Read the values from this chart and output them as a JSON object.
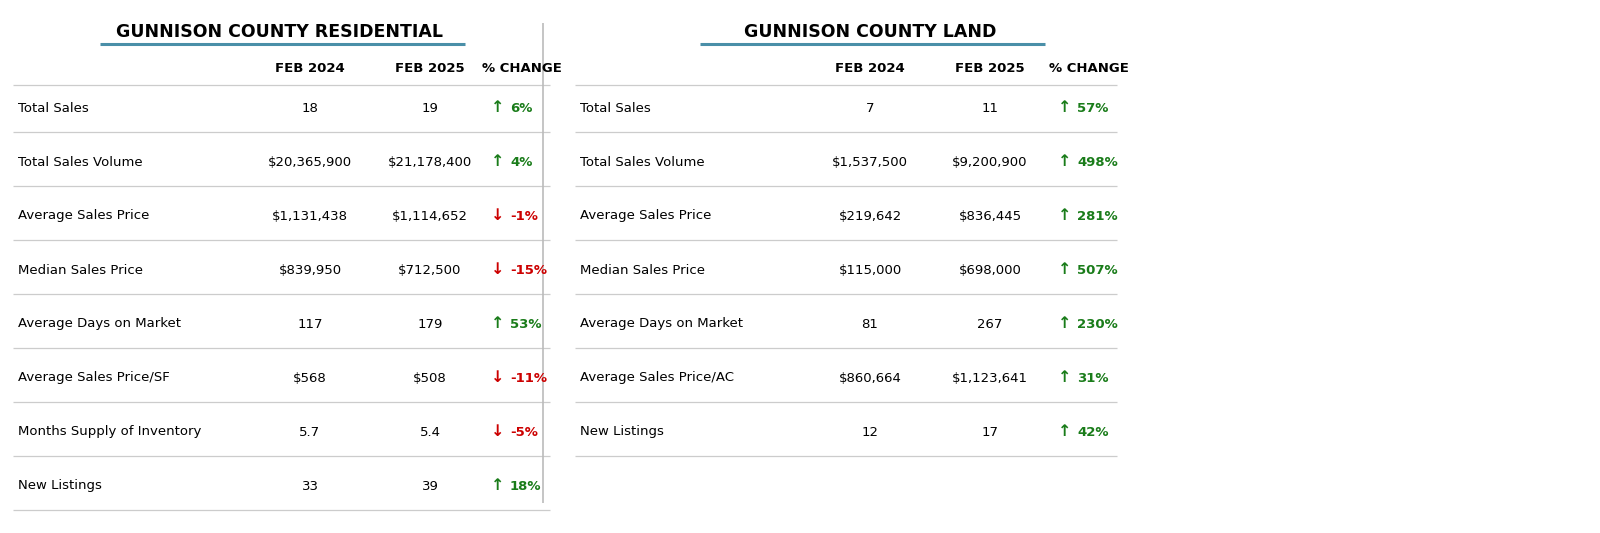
{
  "res_title": "GUNNISON COUNTY RESIDENTIAL",
  "land_title": "GUNNISON COUNTY LAND",
  "col_headers": [
    "FEB 2024",
    "FEB 2025",
    "% CHANGE"
  ],
  "res_rows": [
    {
      "label": "Total Sales",
      "val1": "18",
      "val2": "19",
      "arrow": "up",
      "pct": "6%"
    },
    {
      "label": "Total Sales Volume",
      "val1": "$20,365,900",
      "val2": "$21,178,400",
      "arrow": "up",
      "pct": "4%"
    },
    {
      "label": "Average Sales Price",
      "val1": "$1,131,438",
      "val2": "$1,114,652",
      "arrow": "down",
      "pct": "-1%"
    },
    {
      "label": "Median Sales Price",
      "val1": "$839,950",
      "val2": "$712,500",
      "arrow": "down",
      "pct": "-15%"
    },
    {
      "label": "Average Days on Market",
      "val1": "117",
      "val2": "179",
      "arrow": "up",
      "pct": "53%"
    },
    {
      "label": "Average Sales Price/SF",
      "val1": "$568",
      "val2": "$508",
      "arrow": "down",
      "pct": "-11%"
    },
    {
      "label": "Months Supply of Inventory",
      "val1": "5.7",
      "val2": "5.4",
      "arrow": "down",
      "pct": "-5%"
    },
    {
      "label": "New Listings",
      "val1": "33",
      "val2": "39",
      "arrow": "up",
      "pct": "18%"
    }
  ],
  "land_rows": [
    {
      "label": "Total Sales",
      "val1": "7",
      "val2": "11",
      "arrow": "up",
      "pct": "57%"
    },
    {
      "label": "Total Sales Volume",
      "val1": "$1,537,500",
      "val2": "$9,200,900",
      "arrow": "up",
      "pct": "498%"
    },
    {
      "label": "Average Sales Price",
      "val1": "$219,642",
      "val2": "$836,445",
      "arrow": "up",
      "pct": "281%"
    },
    {
      "label": "Median Sales Price",
      "val1": "$115,000",
      "val2": "$698,000",
      "arrow": "up",
      "pct": "507%"
    },
    {
      "label": "Average Days on Market",
      "val1": "81",
      "val2": "267",
      "arrow": "up",
      "pct": "230%"
    },
    {
      "label": "Average Sales Price/AC",
      "val1": "$860,664",
      "val2": "$1,123,641",
      "arrow": "up",
      "pct": "31%"
    },
    {
      "label": "New Listings",
      "val1": "12",
      "val2": "17",
      "arrow": "up",
      "pct": "42%"
    }
  ],
  "up_color": "#1a7c1a",
  "down_color": "#cc0000",
  "header_color": "#000000",
  "label_color": "#000000",
  "value_color": "#000000",
  "line_color": "#cccccc",
  "title_underline_color": "#4a8fa8",
  "bg_color": "#ffffff",
  "title_fontsize": 12.5,
  "header_fontsize": 9.5,
  "row_fontsize": 9.5
}
